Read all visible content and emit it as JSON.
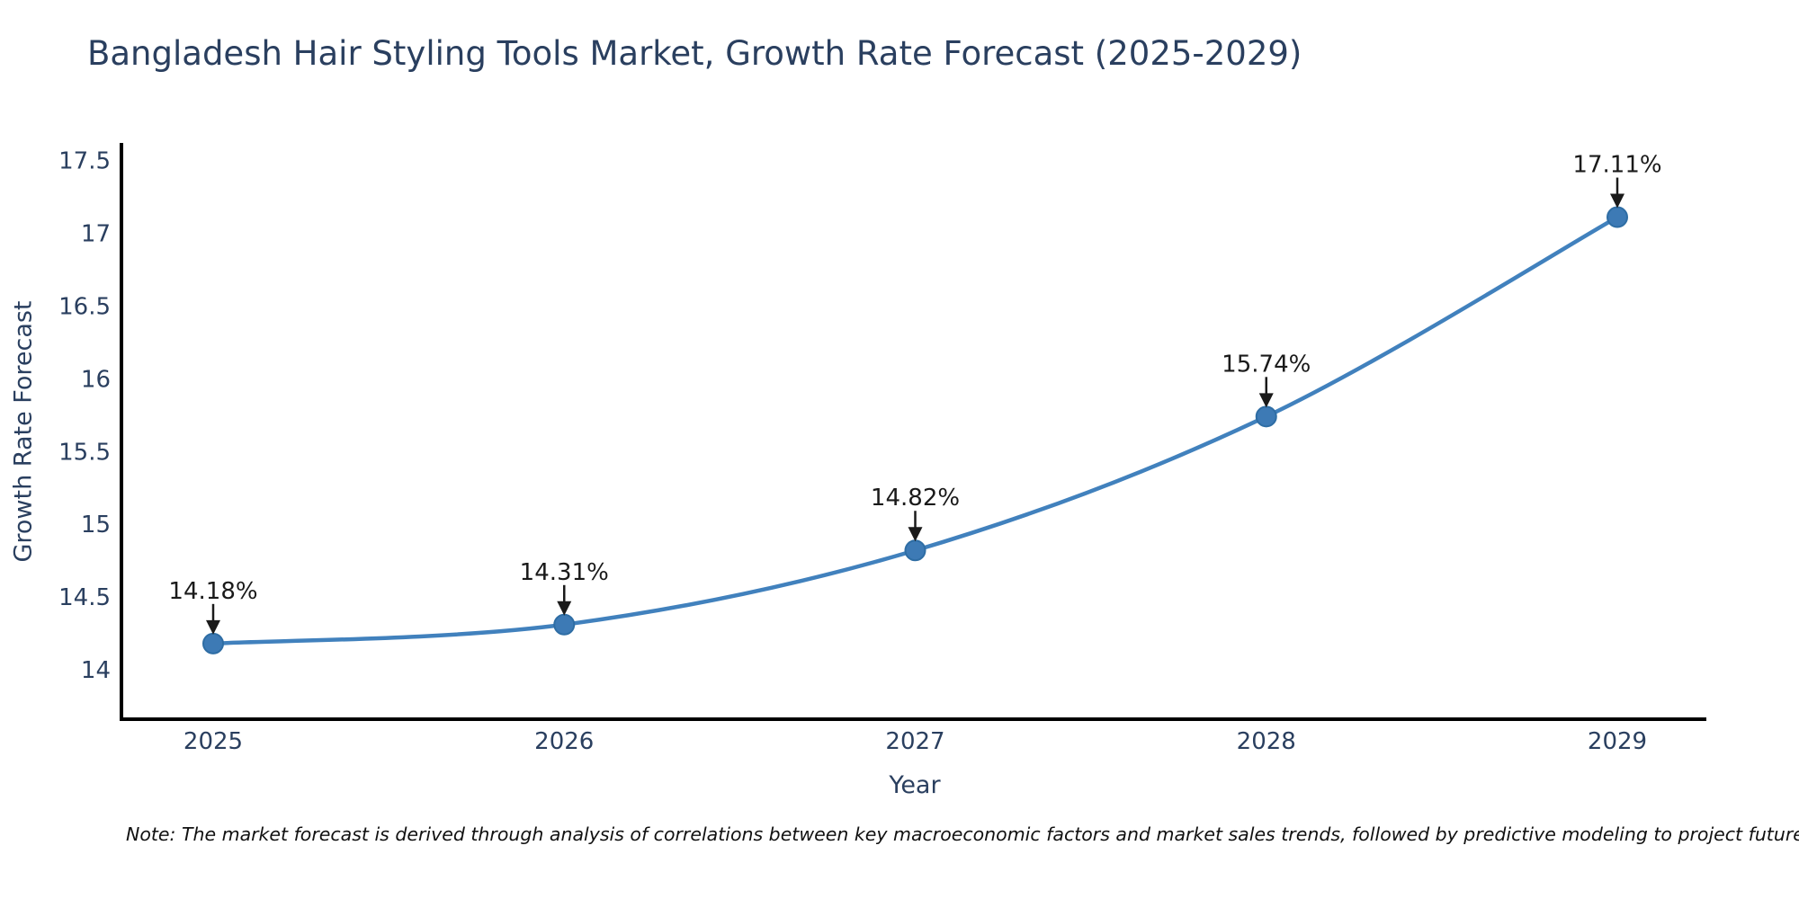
{
  "page": {
    "background": "#ffffff"
  },
  "chart_data": {
    "type": "line",
    "line_shape": "spline",
    "title": "Bangladesh Hair Styling Tools Market, Growth Rate Forecast (2025-2029)",
    "xlabel": "Year",
    "ylabel": "Growth Rate Forecast",
    "categories": [
      "2025",
      "2026",
      "2027",
      "2028",
      "2029"
    ],
    "values": [
      14.18,
      14.31,
      14.82,
      15.74,
      17.11
    ],
    "point_labels": [
      "14.18%",
      "14.31%",
      "14.82%",
      "15.74%",
      "17.11%"
    ],
    "ytick_labels": [
      "17.5",
      "17",
      "16.5",
      "16",
      "15.5",
      "15",
      "14.5",
      "14"
    ],
    "ytick_values": [
      17.5,
      17,
      16.5,
      16,
      15.5,
      15,
      14.5,
      14
    ],
    "ylim": [
      13.66,
      17.62
    ],
    "grid": false,
    "legend_position": "none",
    "colors": {
      "line": "#4181bd",
      "marker": "#3d7ab5",
      "marker_edge": "#2e6da4",
      "axis": "#000000",
      "text": "#2a3f5f",
      "annotation": "#1a1a1a"
    }
  },
  "note": "Note: The market forecast is derived through analysis of correlations between key macroeconomic factors and market sales trends, followed by predictive modeling to project future sal"
}
